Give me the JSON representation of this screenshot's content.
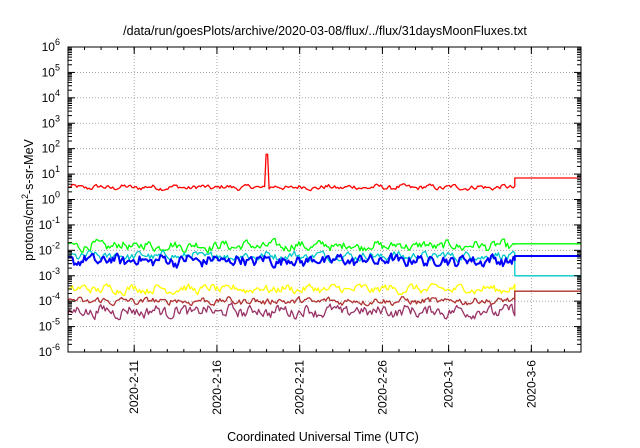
{
  "chart_data": {
    "type": "line",
    "title": "/data/run/goesPlots/archive/2020-03-08/flux/../flux/31daysMoonFluxes.txt",
    "xlabel": "Coordinated Universal Time (UTC)",
    "ylabel_base": "protons/cm",
    "ylabel_sup": "2",
    "ylabel_rest": "-s-sr-MeV",
    "y_scale": "log",
    "ylim": [
      1e-06,
      1000000.0
    ],
    "y_tick_labels": [
      {
        "base": "10",
        "exp": "-6"
      },
      {
        "base": "10",
        "exp": "-5"
      },
      {
        "base": "10",
        "exp": "-4"
      },
      {
        "base": "10",
        "exp": "-3"
      },
      {
        "base": "10",
        "exp": "-2"
      },
      {
        "base": "10",
        "exp": "-1"
      },
      {
        "base": "10",
        "exp": "0"
      },
      {
        "base": "10",
        "exp": "1"
      },
      {
        "base": "10",
        "exp": "2"
      },
      {
        "base": "10",
        "exp": "3"
      },
      {
        "base": "10",
        "exp": "4"
      },
      {
        "base": "10",
        "exp": "5"
      },
      {
        "base": "10",
        "exp": "6"
      }
    ],
    "xlim": [
      "2020-02-07",
      "2020-03-09"
    ],
    "x_ticks": [
      "2020-02-11",
      "2020-02-16",
      "2020-02-21",
      "2020-02-26",
      "2020-03-01",
      "2020-03-06"
    ],
    "x_tick_labels": [
      "2020-2-11",
      "2020-2-16",
      "2020-2-21",
      "2020-2-26",
      "2020-3-1",
      "2020-3-6"
    ],
    "grid": true,
    "data_end": "2020-03-05",
    "series": [
      {
        "color": "#ff0000",
        "center": 3,
        "spread": 1.4,
        "final": 7,
        "spike_at": "2020-02-19",
        "spike_value": 60
      },
      {
        "color": "#00ff00",
        "center": 0.015,
        "spread": 1.9,
        "final": 0.018
      },
      {
        "color": "#00c8c8",
        "center": 0.006,
        "spread": 1.8,
        "final": 0.001
      },
      {
        "color": "#0000ff",
        "center": 0.004,
        "spread": 2.2,
        "final": 0.006
      },
      {
        "color": "#ffff00",
        "center": 0.0003,
        "spread": 1.8,
        "final": 0.00025
      },
      {
        "color": "#993366",
        "center": 4e-05,
        "spread": 2.2,
        "final": 0.00025
      },
      {
        "color": "#b03030",
        "center": 0.0001,
        "spread": 1.6,
        "final": 0.00025
      }
    ]
  }
}
